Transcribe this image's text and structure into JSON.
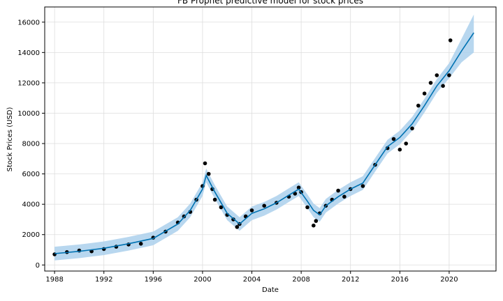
{
  "chart_data": {
    "type": "line",
    "title": "FB Prophet predictive model for stock prices",
    "xlabel": "Date",
    "ylabel": "Stock Prices (USD)",
    "xlim": [
      1987.2,
      2023.8
    ],
    "ylim": [
      -400,
      17000
    ],
    "grid": true,
    "x_ticks": [
      1988,
      1992,
      1996,
      2000,
      2004,
      2008,
      2012,
      2016,
      2020
    ],
    "y_ticks": [
      0,
      2000,
      4000,
      6000,
      8000,
      10000,
      12000,
      14000,
      16000
    ],
    "series": [
      {
        "name": "observed",
        "style": "black-dots",
        "x": [
          1988.0,
          1989.0,
          1990.0,
          1991.0,
          1992.0,
          1993.0,
          1994.0,
          1995.0,
          1996.0,
          1997.0,
          1998.0,
          1998.5,
          1999.0,
          1999.5,
          2000.0,
          2000.2,
          2000.5,
          2000.8,
          2001.0,
          2001.5,
          2002.0,
          2002.5,
          2002.8,
          2003.0,
          2003.5,
          2004.0,
          2005.0,
          2006.0,
          2007.0,
          2007.5,
          2007.8,
          2008.0,
          2008.5,
          2009.0,
          2009.2,
          2009.5,
          2010.0,
          2010.5,
          2011.0,
          2011.5,
          2012.0,
          2013.0,
          2014.0,
          2015.0,
          2015.5,
          2016.0,
          2016.5,
          2017.0,
          2017.5,
          2018.0,
          2018.5,
          2019.0,
          2019.5,
          2020.0,
          2020.1
        ],
        "values": [
          700,
          850,
          950,
          900,
          1050,
          1200,
          1350,
          1400,
          1800,
          2200,
          2800,
          3200,
          3500,
          4300,
          5200,
          6700,
          6000,
          5000,
          4300,
          3800,
          3300,
          3000,
          2500,
          2700,
          3200,
          3600,
          3900,
          4100,
          4500,
          4700,
          5100,
          4800,
          3800,
          2600,
          2900,
          3400,
          3900,
          4300,
          4900,
          4500,
          5000,
          5200,
          6600,
          7700,
          8300,
          7600,
          8000,
          9000,
          10500,
          11300,
          12000,
          12500,
          11800,
          12500,
          14800
        ]
      },
      {
        "name": "forecast",
        "style": "blue-line",
        "x": [
          1988.0,
          1990.0,
          1992.0,
          1994.0,
          1996.0,
          1998.0,
          1999.0,
          2000.0,
          2000.3,
          2001.0,
          2002.0,
          2003.0,
          2004.0,
          2005.0,
          2006.0,
          2007.0,
          2007.8,
          2008.5,
          2009.0,
          2009.5,
          2010.0,
          2011.0,
          2012.0,
          2013.0,
          2014.0,
          2015.0,
          2016.0,
          2017.0,
          2018.0,
          2019.0,
          2020.0,
          2021.0,
          2022.0
        ],
        "values": [
          750,
          900,
          1100,
          1400,
          1750,
          2700,
          3600,
          5000,
          5900,
          4800,
          3400,
          2700,
          3400,
          3700,
          4100,
          4600,
          5000,
          4200,
          3600,
          3300,
          3900,
          4500,
          5000,
          5400,
          6600,
          7800,
          8400,
          9300,
          10500,
          11800,
          12800,
          14100,
          15300
        ]
      }
    ],
    "uncertainty_band": {
      "x": [
        1988.0,
        1990.0,
        1992.0,
        1994.0,
        1996.0,
        1998.0,
        1999.0,
        2000.0,
        2000.3,
        2001.0,
        2002.0,
        2003.0,
        2004.0,
        2005.0,
        2006.0,
        2007.0,
        2007.8,
        2008.5,
        2009.0,
        2009.5,
        2010.0,
        2011.0,
        2012.0,
        2013.0,
        2014.0,
        2015.0,
        2016.0,
        2017.0,
        2018.0,
        2019.0,
        2020.0,
        2021.0,
        2022.0
      ],
      "lower": [
        300,
        450,
        650,
        950,
        1300,
        2250,
        3150,
        4550,
        5450,
        4350,
        2950,
        2250,
        2950,
        3250,
        3650,
        4150,
        4550,
        3750,
        3150,
        2850,
        3450,
        4050,
        4550,
        4950,
        6150,
        7350,
        7950,
        8850,
        10050,
        11350,
        12300,
        13350,
        14000
      ],
      "upper": [
        1200,
        1350,
        1550,
        1850,
        2200,
        3150,
        4050,
        5450,
        6350,
        5250,
        3850,
        3150,
        3850,
        4150,
        4550,
        5050,
        5450,
        4650,
        4050,
        3750,
        4350,
        4950,
        5450,
        5850,
        7050,
        8250,
        8850,
        9750,
        10950,
        12250,
        13300,
        14900,
        16500
      ]
    },
    "colors": {
      "band": "#acd0ec",
      "forecast": "#0072b2",
      "points": "#000000",
      "grid": "#dddddd"
    }
  }
}
